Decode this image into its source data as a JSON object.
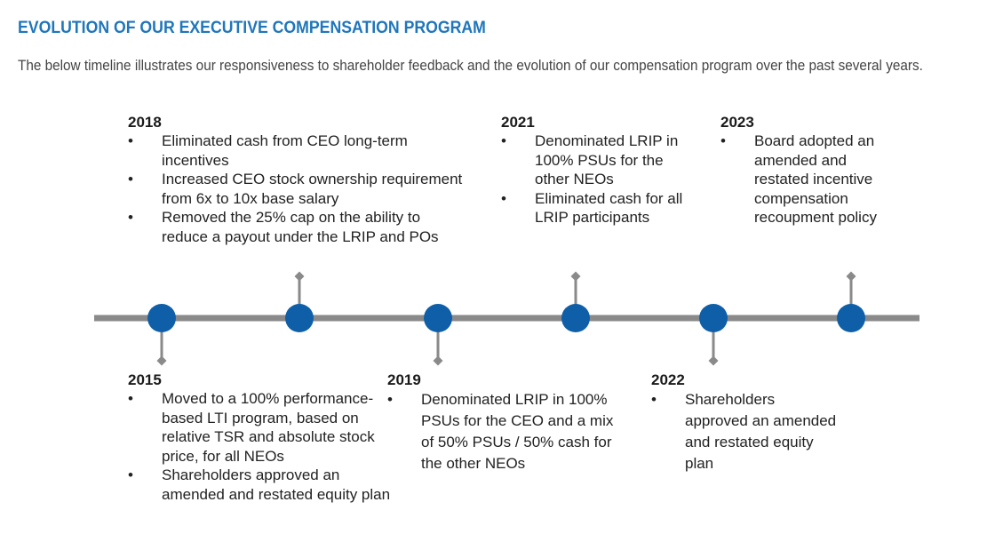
{
  "header": {
    "title": "EVOLUTION OF OUR EXECUTIVE COMPENSATION PROGRAM",
    "intro": "The below timeline illustrates our responsiveness to shareholder feedback and the evolution of our compensation program over the past several years."
  },
  "colors": {
    "title": "#1f76bb",
    "line": "#8a8a8a",
    "node": "#0f5fa8",
    "connector": "#8a8a8a"
  },
  "bullet_glyph": "•",
  "events": [
    {
      "year": "2015",
      "items": [
        "Moved to a 100% performance-based LTI program, based on relative TSR and absolute stock price, for all NEOs",
        "Shareholders approved an amended and restated equity plan"
      ]
    },
    {
      "year": "2018",
      "items": [
        "Eliminated cash from CEO long-term incentives",
        "Increased CEO stock ownership requirement from 6x to 10x base salary",
        "Removed the 25% cap on the ability to reduce a payout under the LRIP and POs"
      ]
    },
    {
      "year": "2019",
      "items": [
        "Denominated LRIP in 100% PSUs for the CEO and a mix of 50% PSUs / 50% cash for the other NEOs"
      ]
    },
    {
      "year": "2021",
      "items": [
        "Denominated LRIP in 100% PSUs for the other NEOs",
        "Eliminated cash for all LRIP participants"
      ]
    },
    {
      "year": "2022",
      "items": [
        "Shareholders approved an amended and restated equity plan"
      ]
    },
    {
      "year": "2023",
      "items": [
        "Board adopted an amended and restated incentive compensation recoupment policy"
      ]
    }
  ]
}
